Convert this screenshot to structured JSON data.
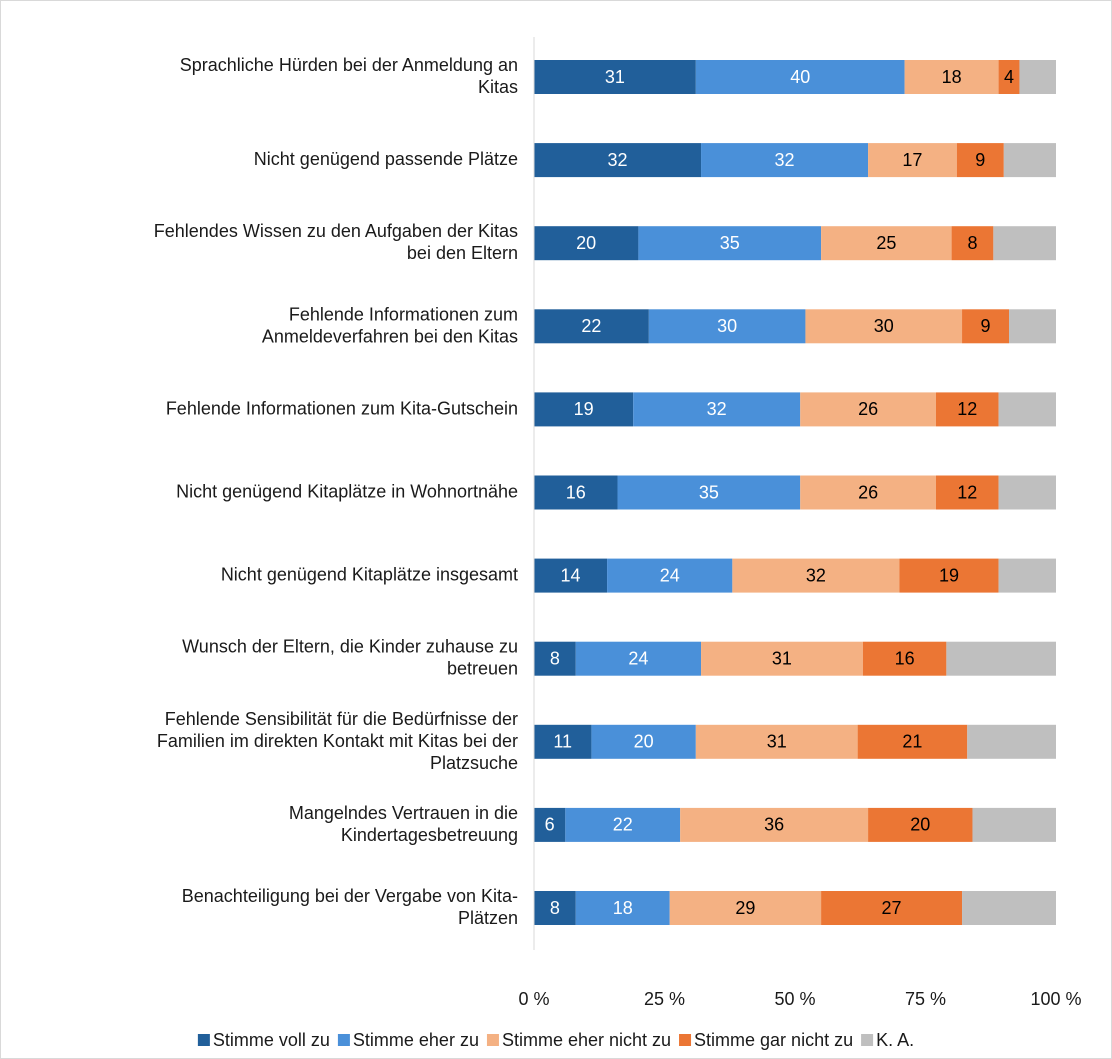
{
  "chart_data": {
    "type": "stacked_barh",
    "categories": [
      [
        "Sprachliche Hürden bei der Anmeldung an",
        "Kitas"
      ],
      [
        "Nicht genügend passende Plätze"
      ],
      [
        "Fehlendes Wissen zu den Aufgaben der Kitas",
        "bei den Eltern"
      ],
      [
        "Fehlende Informationen zum",
        "Anmeldeverfahren bei den Kitas"
      ],
      [
        "Fehlende Informationen zum Kita-Gutschein"
      ],
      [
        "Nicht genügend Kitaplätze in Wohnortnähe"
      ],
      [
        "Nicht genügend Kitaplätze insgesamt"
      ],
      [
        "Wunsch der Eltern, die Kinder zuhause zu",
        "betreuen"
      ],
      [
        "Fehlende Sensibilität für die Bedürfnisse der",
        "Familien im direkten Kontakt mit Kitas bei der",
        "Platzsuche"
      ],
      [
        "Mangelndes Vertrauen in die",
        "Kindertagesbetreuung"
      ],
      [
        "Benachteiligung bei der Vergabe von Kita-",
        "Plätzen"
      ]
    ],
    "series": [
      {
        "name": "Stimme voll zu",
        "color": "#215f9a",
        "label_color": "#ffffff",
        "show_labels": true,
        "values": [
          31,
          32,
          20,
          22,
          19,
          16,
          14,
          8,
          11,
          6,
          8
        ]
      },
      {
        "name": "Stimme eher zu",
        "color": "#4a90d9",
        "label_color": "#ffffff",
        "show_labels": true,
        "values": [
          40,
          32,
          35,
          30,
          32,
          35,
          24,
          24,
          20,
          22,
          18
        ]
      },
      {
        "name": "Stimme eher nicht zu",
        "color": "#f4b183",
        "label_color": "#000000",
        "show_labels": true,
        "values": [
          18,
          17,
          25,
          30,
          26,
          26,
          32,
          31,
          31,
          36,
          29
        ]
      },
      {
        "name": "Stimme gar nicht zu",
        "color": "#eb7634",
        "label_color": "#000000",
        "show_labels": true,
        "values": [
          4,
          9,
          8,
          9,
          12,
          12,
          19,
          16,
          21,
          20,
          27
        ]
      },
      {
        "name": "K. A.",
        "color": "#bfbfbf",
        "label_color": "#000000",
        "show_labels": false,
        "values": [
          7,
          10,
          12,
          9,
          11,
          11,
          11,
          21,
          17,
          16,
          18
        ]
      }
    ],
    "xlim": [
      0,
      100
    ],
    "xticks": [
      {
        "value": 0,
        "label": "0 %"
      },
      {
        "value": 25,
        "label": "25 %"
      },
      {
        "value": 50,
        "label": "50 %"
      },
      {
        "value": 75,
        "label": "75 %"
      },
      {
        "value": 100,
        "label": "100 %"
      }
    ],
    "legend": "bottom"
  }
}
